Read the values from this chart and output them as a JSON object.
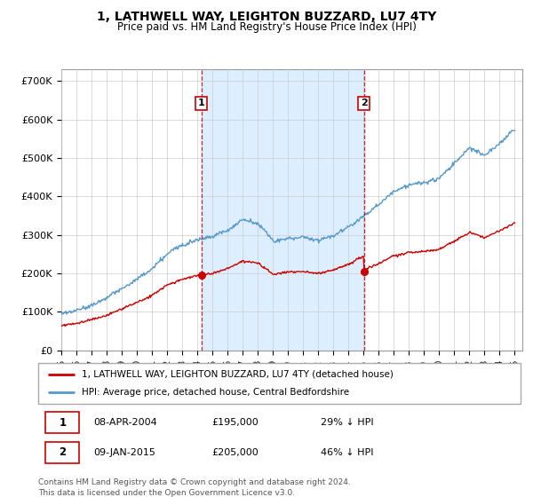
{
  "title": "1, LATHWELL WAY, LEIGHTON BUZZARD, LU7 4TY",
  "subtitle": "Price paid vs. HM Land Registry's House Price Index (HPI)",
  "ylabel_ticks": [
    "£0",
    "£100K",
    "£200K",
    "£300K",
    "£400K",
    "£500K",
    "£600K",
    "£700K"
  ],
  "ytick_values": [
    0,
    100000,
    200000,
    300000,
    400000,
    500000,
    600000,
    700000
  ],
  "ylim": [
    0,
    730000
  ],
  "xlim": [
    1995,
    2025.5
  ],
  "sale1_x": 2004.27,
  "sale1_y": 195000,
  "sale2_x": 2015.03,
  "sale2_y": 205000,
  "legend_line1": "1, LATHWELL WAY, LEIGHTON BUZZARD, LU7 4TY (detached house)",
  "legend_line2": "HPI: Average price, detached house, Central Bedfordshire",
  "table_rows": [
    [
      "1",
      "08-APR-2004",
      "£195,000",
      "29% ↓ HPI"
    ],
    [
      "2",
      "09-JAN-2015",
      "£205,000",
      "46% ↓ HPI"
    ]
  ],
  "footer": "Contains HM Land Registry data © Crown copyright and database right 2024.\nThis data is licensed under the Open Government Licence v3.0.",
  "line_color_red": "#cc0000",
  "line_color_blue": "#5599cc",
  "shade_color": "#ddeeff",
  "grid_color": "#cccccc",
  "xtick_labels": [
    "95",
    "96",
    "97",
    "98",
    "99",
    "00",
    "01",
    "02",
    "03",
    "04",
    "05",
    "06",
    "07",
    "08",
    "09",
    "10",
    "11",
    "12",
    "13",
    "14",
    "15",
    "16",
    "17",
    "18",
    "19",
    "20",
    "21",
    "22",
    "23",
    "24",
    "25"
  ],
  "xtick_years": [
    1995,
    1996,
    1997,
    1998,
    1999,
    2000,
    2001,
    2002,
    2003,
    2004,
    2005,
    2006,
    2007,
    2008,
    2009,
    2010,
    2011,
    2012,
    2013,
    2014,
    2015,
    2016,
    2017,
    2018,
    2019,
    2020,
    2021,
    2022,
    2023,
    2024,
    2025
  ]
}
